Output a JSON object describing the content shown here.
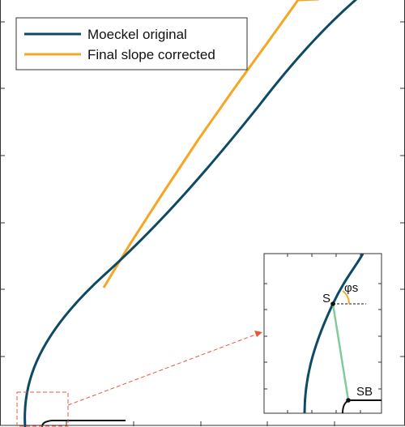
{
  "chart_data": {
    "type": "line",
    "title": "",
    "xlabel": "",
    "ylabel": "",
    "grid": false,
    "legend_position": "top-left",
    "series": [
      {
        "name": "Moeckel original",
        "color": "#0d4a63"
      },
      {
        "name": "Final slope corrected",
        "color": "#f5a623"
      }
    ],
    "inset": {
      "labels": {
        "point_s": "S",
        "point_sb": "SB",
        "angle": "φs"
      },
      "line_color": "#7fcc9a",
      "callout_color": "#e8573a"
    }
  },
  "legend": {
    "entries": [
      {
        "label": "Moeckel original"
      },
      {
        "label": "Final slope corrected"
      }
    ]
  }
}
